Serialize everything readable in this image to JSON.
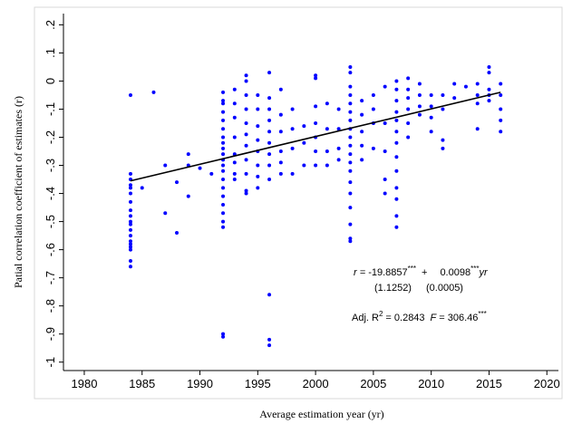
{
  "chart_data": {
    "type": "scatter",
    "xlabel": "Average estimation year (yr)",
    "ylabel": "Patial correlation coefficient of estimates (r)",
    "color": "#0000ff",
    "xlim": [
      1978.2,
      2021
    ],
    "ylim": [
      -1.03,
      0.24
    ],
    "xticks": [
      1980,
      1985,
      1990,
      1995,
      2000,
      2005,
      2010,
      2015,
      2020
    ],
    "yticks": [
      {
        "value": 0.2,
        "label": ".2"
      },
      {
        "value": 0.1,
        "label": ".1"
      },
      0,
      {
        "value": -0.1,
        "label": "-.1"
      },
      {
        "value": -0.2,
        "label": "-.2"
      },
      {
        "value": -0.3,
        "label": "-.3"
      },
      {
        "value": -0.4,
        "label": "-.4"
      },
      {
        "value": -0.5,
        "label": "-.5"
      },
      {
        "value": -0.6,
        "label": "-.6"
      },
      {
        "value": -0.7,
        "label": "-.7"
      },
      {
        "value": -0.8,
        "label": "-.8"
      },
      {
        "value": -0.9,
        "label": "-.9"
      },
      -1
    ],
    "x": [
      1984,
      1984,
      1984,
      1984,
      1984,
      1984,
      1984,
      1984,
      1984,
      1984,
      1984,
      1984,
      1984,
      1984,
      1984,
      1984,
      1984,
      1984,
      1984,
      1985,
      1986,
      1987,
      1987,
      1988,
      1988,
      1989,
      1989,
      1989,
      1990,
      1991,
      1992,
      1992,
      1992,
      1992,
      1992,
      1992,
      1992,
      1992,
      1992,
      1992,
      1992,
      1992,
      1992,
      1992,
      1992,
      1992,
      1992,
      1992,
      1992,
      1992,
      1992,
      1992,
      1993,
      1993,
      1993,
      1993,
      1993,
      1993,
      1993,
      1993,
      1994,
      1994,
      1994,
      1994,
      1994,
      1994,
      1994,
      1994,
      1994,
      1994,
      1994,
      1995,
      1995,
      1995,
      1995,
      1995,
      1995,
      1995,
      1995,
      1996,
      1996,
      1996,
      1996,
      1996,
      1996,
      1996,
      1996,
      1996,
      1996,
      1996,
      1996,
      1997,
      1997,
      1997,
      1997,
      1997,
      1997,
      1998,
      1998,
      1998,
      1998,
      1999,
      1999,
      1999,
      2000,
      2000,
      2000,
      2000,
      2000,
      2000,
      2000,
      2001,
      2001,
      2001,
      2001,
      2002,
      2002,
      2002,
      2002,
      2003,
      2003,
      2003,
      2003,
      2003,
      2003,
      2003,
      2003,
      2003,
      2003,
      2003,
      2003,
      2003,
      2003,
      2003,
      2003,
      2003,
      2003,
      2003,
      2004,
      2004,
      2004,
      2004,
      2004,
      2005,
      2005,
      2005,
      2005,
      2006,
      2006,
      2006,
      2006,
      2006,
      2007,
      2007,
      2007,
      2007,
      2007,
      2007,
      2007,
      2007,
      2007,
      2007,
      2007,
      2007,
      2007,
      2008,
      2008,
      2008,
      2008,
      2008,
      2008,
      2009,
      2009,
      2009,
      2009,
      2010,
      2010,
      2010,
      2010,
      2011,
      2011,
      2011,
      2011,
      2012,
      2012,
      2013,
      2014,
      2014,
      2014,
      2014,
      2015,
      2015,
      2015,
      2015,
      2015,
      2016,
      2016,
      2016,
      2016,
      2016
    ],
    "values": [
      -0.05,
      -0.33,
      -0.35,
      -0.37,
      -0.38,
      -0.4,
      -0.43,
      -0.46,
      -0.48,
      -0.5,
      -0.51,
      -0.53,
      -0.55,
      -0.57,
      -0.58,
      -0.59,
      -0.6,
      -0.64,
      -0.66,
      -0.38,
      -0.04,
      -0.3,
      -0.47,
      -0.36,
      -0.54,
      -0.26,
      -0.3,
      -0.41,
      -0.31,
      -0.33,
      -0.04,
      -0.07,
      -0.08,
      -0.11,
      -0.14,
      -0.17,
      -0.2,
      -0.22,
      -0.24,
      -0.26,
      -0.28,
      -0.3,
      -0.32,
      -0.35,
      -0.38,
      -0.41,
      -0.44,
      -0.47,
      -0.5,
      -0.52,
      -0.9,
      -0.91,
      -0.03,
      -0.08,
      -0.13,
      -0.2,
      -0.26,
      -0.29,
      -0.33,
      -0.35,
      0.02,
      0.0,
      -0.05,
      -0.1,
      -0.15,
      -0.19,
      -0.23,
      -0.28,
      -0.33,
      -0.39,
      -0.4,
      -0.05,
      -0.1,
      -0.16,
      -0.21,
      -0.25,
      -0.3,
      -0.34,
      -0.38,
      0.03,
      -0.06,
      -0.1,
      -0.14,
      -0.18,
      -0.22,
      -0.26,
      -0.3,
      -0.35,
      -0.76,
      -0.92,
      -0.94,
      -0.03,
      -0.12,
      -0.18,
      -0.25,
      -0.29,
      -0.33,
      -0.1,
      -0.17,
      -0.24,
      -0.33,
      -0.16,
      -0.22,
      -0.3,
      0.02,
      0.01,
      -0.09,
      -0.15,
      -0.2,
      -0.25,
      -0.3,
      -0.08,
      -0.17,
      -0.25,
      -0.3,
      -0.1,
      -0.17,
      -0.24,
      -0.28,
      0.05,
      0.03,
      -0.02,
      -0.05,
      -0.08,
      -0.11,
      -0.14,
      -0.17,
      -0.2,
      -0.23,
      -0.26,
      -0.29,
      -0.32,
      -0.36,
      -0.4,
      -0.45,
      -0.51,
      -0.56,
      -0.57,
      -0.07,
      -0.12,
      -0.18,
      -0.23,
      -0.28,
      -0.05,
      -0.1,
      -0.15,
      -0.24,
      -0.02,
      -0.15,
      -0.25,
      -0.35,
      -0.4,
      0.0,
      -0.03,
      -0.07,
      -0.11,
      -0.14,
      -0.18,
      -0.22,
      -0.27,
      -0.32,
      -0.38,
      -0.42,
      -0.48,
      -0.52,
      0.01,
      -0.03,
      -0.06,
      -0.1,
      -0.15,
      -0.2,
      -0.01,
      -0.05,
      -0.09,
      -0.12,
      -0.05,
      -0.09,
      -0.13,
      -0.18,
      -0.05,
      -0.1,
      -0.21,
      -0.24,
      -0.01,
      -0.06,
      -0.02,
      -0.01,
      -0.05,
      -0.08,
      -0.17,
      0.05,
      0.03,
      -0.03,
      -0.05,
      -0.07,
      -0.01,
      -0.05,
      -0.1,
      -0.14,
      -0.18
    ],
    "fit_line": {
      "x": [
        1984,
        2016
      ],
      "y": [
        -0.355,
        -0.04
      ]
    },
    "annotation": {
      "r_label": "r =",
      "intercept": "-19.8857",
      "intercept_sig": "***",
      "plus": "+",
      "slope": "0.0098",
      "slope_sig": "***",
      "slope_var": "yr",
      "intercept_se": "(1.1252)",
      "slope_se": "(0.0005)",
      "adj_label": "Adj. R",
      "adj_sup": "2",
      "adj_value": "= 0.2843",
      "f_label": "F",
      "f_value": "= 306.46",
      "f_sig": "***"
    }
  }
}
